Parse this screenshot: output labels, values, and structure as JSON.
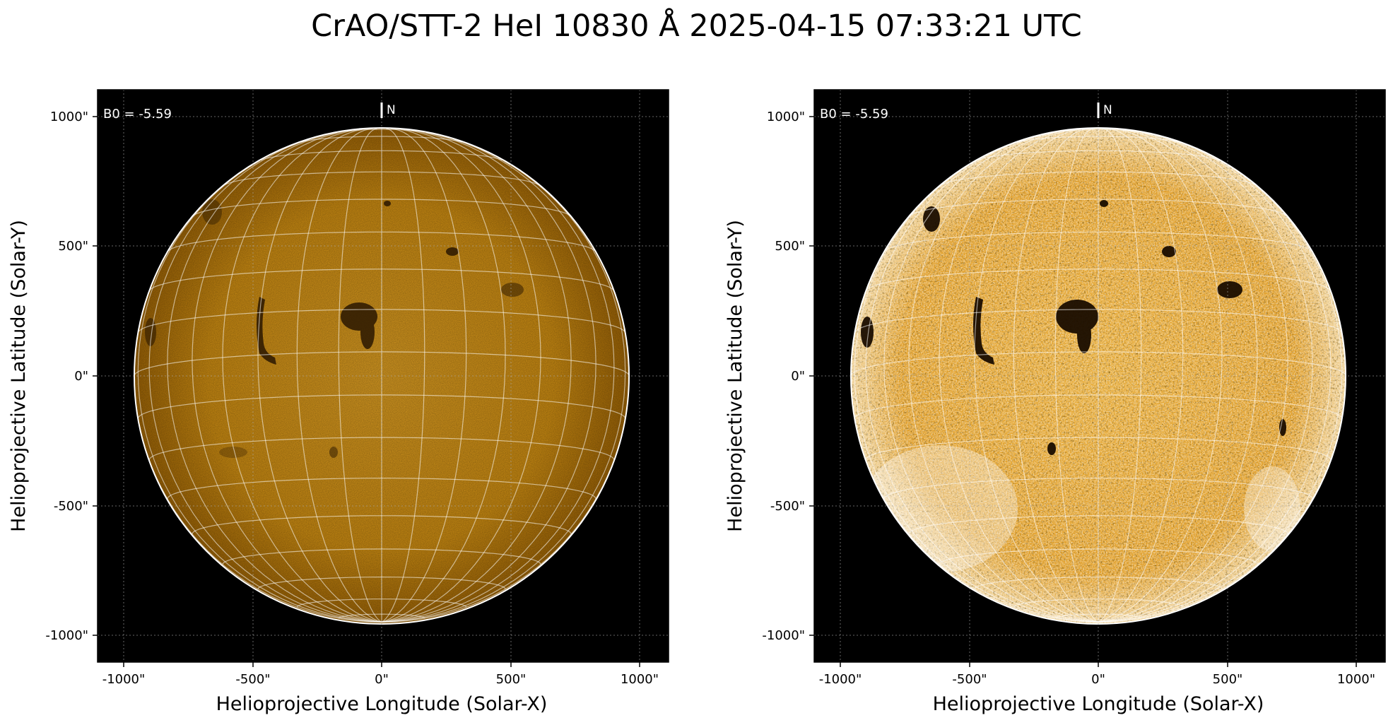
{
  "figure": {
    "title": "CrAO/STT-2 HeI 10830 Å 2025-04-15 07:33:21 UTC"
  },
  "panels": [
    {
      "variant": "standard",
      "annotation": "B0 = -5.59",
      "north_label": "N",
      "xlabel": "Helioprojective Longitude (Solar-X)",
      "ylabel": "Helioprojective Latitude (Solar-Y)",
      "xticks": [
        "-1000\"",
        "-500\"",
        "0\"",
        "500\"",
        "1000\""
      ],
      "yticks": [
        "1000\"",
        "500\"",
        "0\"",
        "-500\"",
        "-1000\""
      ]
    },
    {
      "variant": "enhanced",
      "annotation": "B0 = -5.59",
      "north_label": "N",
      "xlabel": "Helioprojective Longitude (Solar-X)",
      "ylabel": "Helioprojective Latitude (Solar-Y)",
      "xticks": [
        "-1000\"",
        "-500\"",
        "0\"",
        "500\"",
        "1000\""
      ],
      "yticks": [
        "1000\"",
        "500\"",
        "0\"",
        "-500\"",
        "-1000\""
      ]
    }
  ],
  "colors": {
    "disk_standard": "#c9860a",
    "disk_enhanced": "#e4a42a",
    "background": "#000000",
    "grid": "#ffffff"
  }
}
